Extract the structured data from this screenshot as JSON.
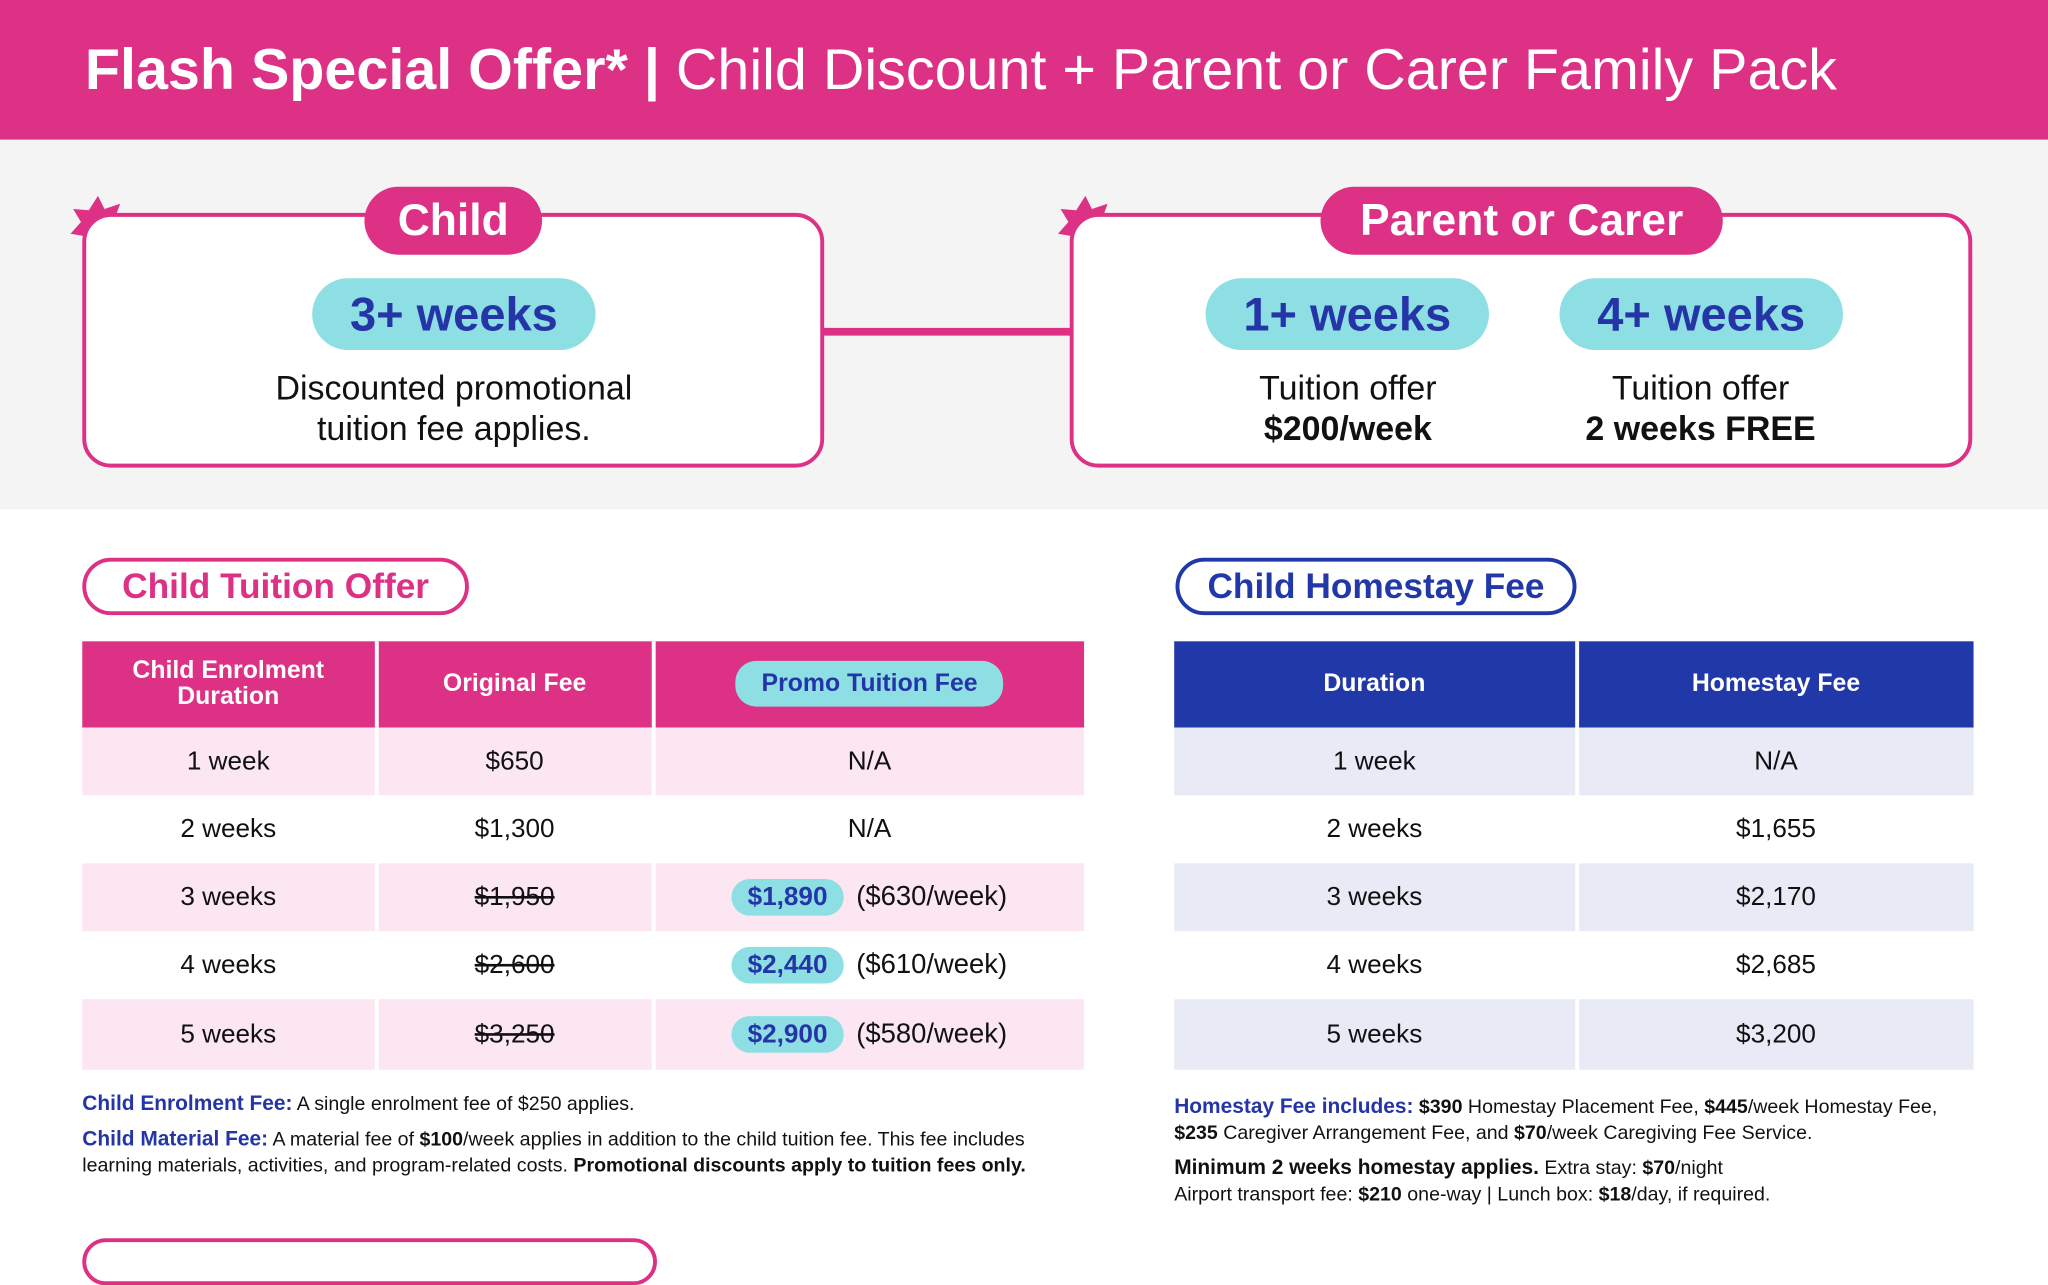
{
  "header": {
    "title_bold": "Flash Special Offer*",
    "separator": "|",
    "title_rest": "Child Discount + Parent or Carer Family Pack"
  },
  "child_panel": {
    "label": "Child",
    "badge": "3+ weeks",
    "text": [
      "Discounted promotional",
      "tuition fee applies."
    ]
  },
  "parent_panel": {
    "label": "Parent or Carer",
    "offers": [
      {
        "badge": "1+ weeks",
        "text": "Tuition offer",
        "highlight": "$200/week"
      },
      {
        "badge": "4+ weeks",
        "text": "Tuition offer",
        "highlight": "2 weeks FREE"
      }
    ]
  },
  "tuition": {
    "title": "Child Tuition Offer",
    "columns": [
      "Child Enrolment Duration",
      "Original Fee",
      "Promo Tuition Fee"
    ],
    "rows": [
      {
        "duration": "1 week",
        "original": "$650",
        "struck": false,
        "promo": "N/A",
        "promo_badge": false
      },
      {
        "duration": "2 weeks",
        "original": "$1,300",
        "struck": false,
        "promo": "N/A",
        "promo_badge": false
      },
      {
        "duration": "3 weeks",
        "original": "$1,950",
        "struck": true,
        "promo": "$1,890",
        "promo_badge": true,
        "per_week": "($630/week)"
      },
      {
        "duration": "4 weeks",
        "original": "$2,600",
        "struck": true,
        "promo": "$2,440",
        "promo_badge": true,
        "per_week": "($610/week)"
      },
      {
        "duration": "5 weeks",
        "original": "$3,250",
        "struck": true,
        "promo": "$2,900",
        "promo_badge": true,
        "per_week": "($580/week)"
      }
    ],
    "notes": [
      [
        {
          "text": "Child Enrolment Fee:",
          "style": "label"
        },
        {
          "text": " A single enrolment fee of $250 applies.",
          "style": "normal"
        }
      ],
      [
        {
          "text": "Child Material Fee:",
          "style": "label"
        },
        {
          "text": " A material fee of ",
          "style": "normal"
        },
        {
          "text": "$100",
          "style": "bold"
        },
        {
          "text": "/week applies in addition to the child tuition fee. This fee includes learning materials, activities, and program-related costs. ",
          "style": "normal"
        },
        {
          "text": "Promotional discounts apply to tuition fees only.",
          "style": "bold"
        }
      ]
    ]
  },
  "homestay": {
    "title": "Child Homestay Fee",
    "columns": [
      "Duration",
      "Homestay Fee"
    ],
    "rows": [
      [
        "1 week",
        "N/A"
      ],
      [
        "2 weeks",
        "$1,655"
      ],
      [
        "3 weeks",
        "$2,170"
      ],
      [
        "4 weeks",
        "$2,685"
      ],
      [
        "5 weeks",
        "$3,200"
      ]
    ],
    "notes": [
      [
        {
          "text": "Homestay Fee includes:",
          "style": "label"
        },
        {
          "text": " ",
          "style": "normal"
        },
        {
          "text": "$390",
          "style": "bold"
        },
        {
          "text": " Homestay Placement Fee, ",
          "style": "normal"
        },
        {
          "text": "$445",
          "style": "bold"
        },
        {
          "text": "/week Homestay Fee, ",
          "style": "normal"
        },
        {
          "text": "$235",
          "style": "bold"
        },
        {
          "text": " Caregiver Arrangement Fee, and ",
          "style": "normal"
        },
        {
          "text": "$70",
          "style": "bold"
        },
        {
          "text": "/week Caregiving Fee Service.",
          "style": "normal"
        }
      ],
      [
        {
          "text": "Minimum 2 weeks homestay applies.",
          "style": "strong"
        },
        {
          "text": " Extra stay: ",
          "style": "normal"
        },
        {
          "text": "$70",
          "style": "bold"
        },
        {
          "text": "/night",
          "style": "normal"
        }
      ],
      [
        {
          "text": "Airport transport fee: ",
          "style": "normal"
        },
        {
          "text": "$210",
          "style": "bold"
        },
        {
          "text": " one-way | Lunch box: ",
          "style": "normal"
        },
        {
          "text": "$18",
          "style": "bold"
        },
        {
          "text": "/day, if required.",
          "style": "normal"
        }
      ]
    ]
  }
}
